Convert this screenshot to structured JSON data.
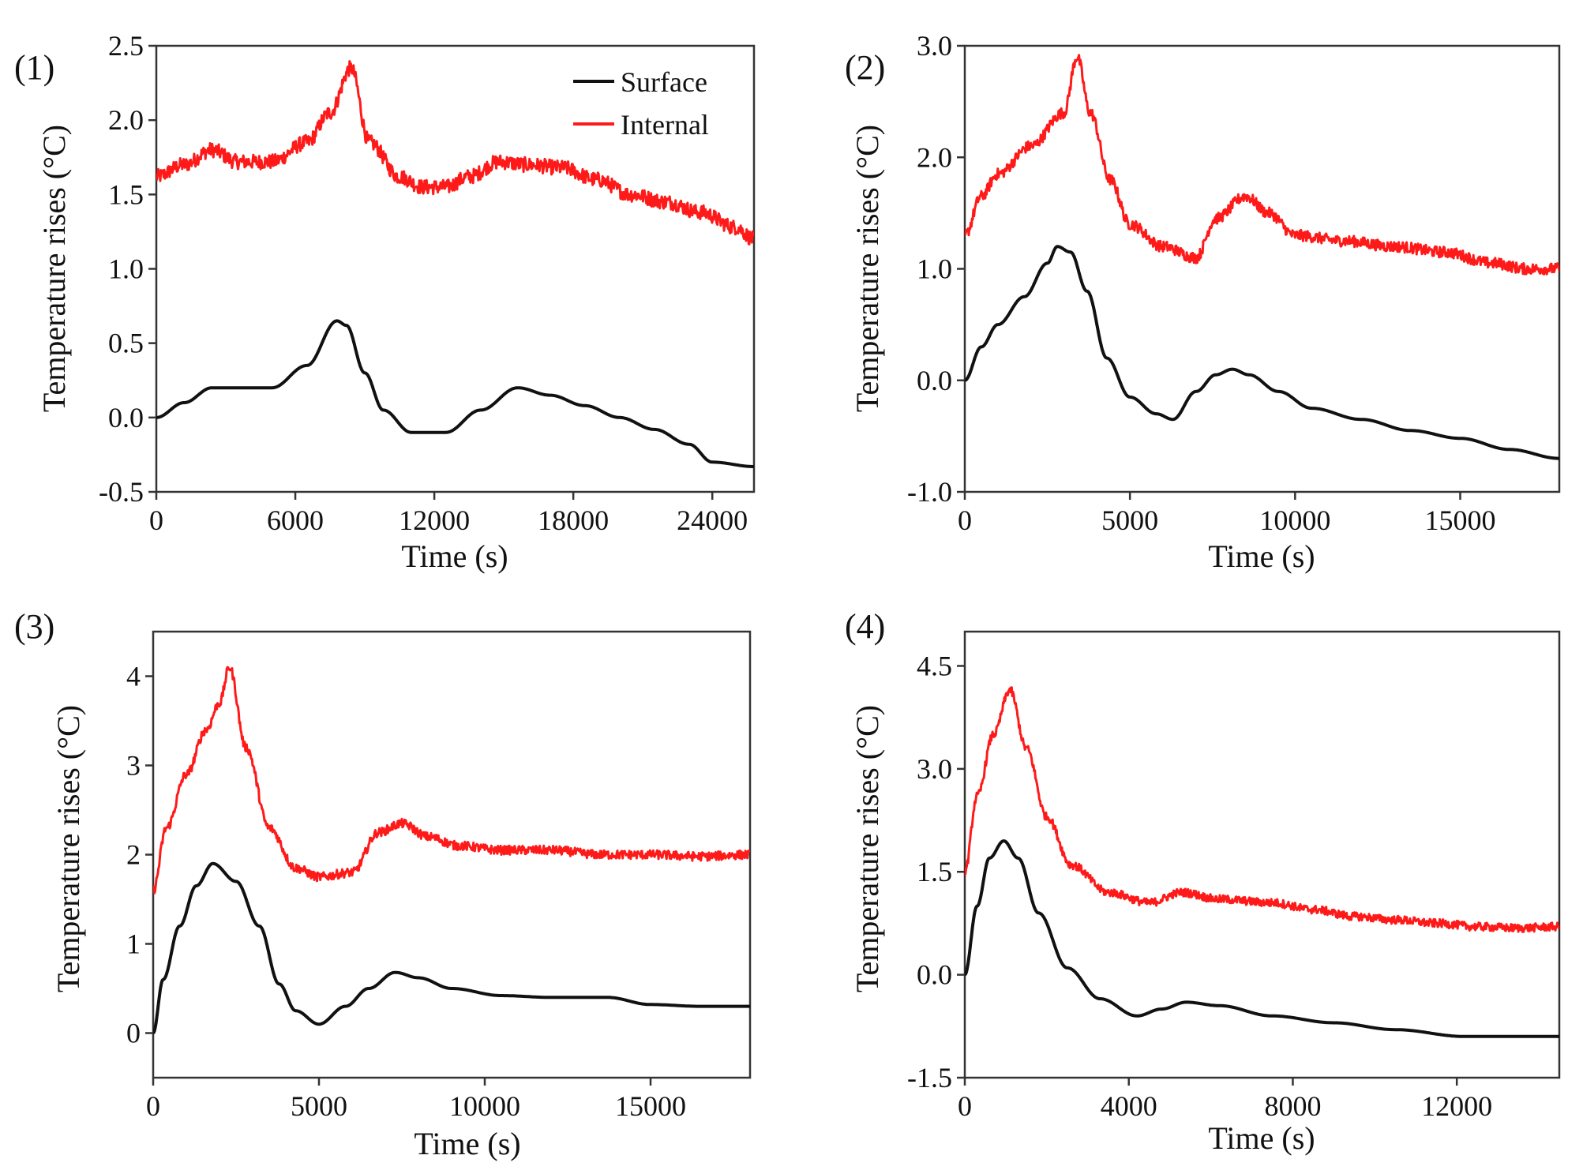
{
  "figure": {
    "colors": {
      "surface": "#111111",
      "internal": "#ff1a1a",
      "axis": "#333333"
    },
    "legend": {
      "surface_label": "Surface",
      "internal_label": "Internal",
      "placement": "top-right of panel (1)"
    }
  },
  "chart_data": [
    {
      "type": "line",
      "panel_label": "(1)",
      "xlabel": "Time (s)",
      "ylabel": "Temperature rises (°C)",
      "xlim": [
        0,
        25800
      ],
      "ylim": [
        -0.5,
        2.5
      ],
      "xticks": [
        0,
        6000,
        12000,
        18000,
        24000
      ],
      "xtick_labels": [
        "0",
        "6000",
        "12000",
        "18000",
        "24000"
      ],
      "yticks": [
        -0.5,
        0.0,
        0.5,
        1.0,
        1.5,
        2.0,
        2.5
      ],
      "ytick_labels": [
        "-0.5",
        "0.0",
        "0.5",
        "1.0",
        "1.5",
        "2.0",
        "2.5"
      ],
      "series": [
        {
          "name": "Surface",
          "noise": 0,
          "x": [
            0,
            1200,
            2400,
            5000,
            6500,
            7800,
            8200,
            9000,
            9800,
            11000,
            12500,
            14000,
            15600,
            17000,
            18500,
            20000,
            21500,
            23000,
            24000,
            25800
          ],
          "y": [
            0.0,
            0.1,
            0.2,
            0.2,
            0.35,
            0.65,
            0.62,
            0.3,
            0.05,
            -0.1,
            -0.1,
            0.05,
            0.2,
            0.15,
            0.08,
            0.0,
            -0.08,
            -0.18,
            -0.3,
            -0.33
          ]
        },
        {
          "name": "Internal",
          "noise": 0.05,
          "x": [
            0,
            1200,
            2400,
            3500,
            5000,
            6500,
            7500,
            8400,
            9200,
            10500,
            11500,
            12500,
            13500,
            14800,
            16000,
            17500,
            19000,
            20500,
            22000,
            23500,
            25000,
            25800
          ],
          "y": [
            1.62,
            1.7,
            1.8,
            1.72,
            1.72,
            1.85,
            2.05,
            2.35,
            1.85,
            1.62,
            1.55,
            1.55,
            1.62,
            1.72,
            1.7,
            1.68,
            1.6,
            1.5,
            1.45,
            1.38,
            1.28,
            1.2
          ]
        }
      ]
    },
    {
      "type": "line",
      "panel_label": "(2)",
      "xlabel": "Time (s)",
      "ylabel": "Temperature rises (°C)",
      "xlim": [
        0,
        18000
      ],
      "ylim": [
        -1.0,
        3.0
      ],
      "xticks": [
        0,
        5000,
        10000,
        15000
      ],
      "xtick_labels": [
        "0",
        "5000",
        "10000",
        "15000"
      ],
      "yticks": [
        -1.0,
        0.0,
        1.0,
        2.0,
        3.0
      ],
      "ytick_labels": [
        "-1.0",
        "0.0",
        "1.0",
        "2.0",
        "3.0"
      ],
      "series": [
        {
          "name": "Surface",
          "noise": 0,
          "x": [
            0,
            500,
            1000,
            1800,
            2500,
            2800,
            3200,
            3700,
            4300,
            5000,
            5800,
            6300,
            7000,
            7600,
            8100,
            8600,
            9500,
            10500,
            12000,
            13500,
            15000,
            16500,
            18000
          ],
          "y": [
            0.0,
            0.3,
            0.5,
            0.75,
            1.05,
            1.2,
            1.15,
            0.8,
            0.2,
            -0.15,
            -0.3,
            -0.35,
            -0.1,
            0.05,
            0.1,
            0.05,
            -0.1,
            -0.25,
            -0.35,
            -0.45,
            -0.52,
            -0.62,
            -0.7
          ]
        },
        {
          "name": "Internal",
          "noise": 0.05,
          "x": [
            0,
            500,
            1000,
            2000,
            3000,
            3400,
            3800,
            4400,
            5000,
            6000,
            7000,
            7600,
            8500,
            9200,
            10000,
            11500,
            13000,
            14500,
            16000,
            17000,
            18000
          ],
          "y": [
            1.3,
            1.65,
            1.85,
            2.1,
            2.4,
            2.9,
            2.4,
            1.8,
            1.4,
            1.2,
            1.1,
            1.45,
            1.65,
            1.5,
            1.3,
            1.25,
            1.2,
            1.15,
            1.05,
            1.0,
            1.0
          ]
        }
      ]
    },
    {
      "type": "line",
      "panel_label": "(3)",
      "xlabel": "Time (s)",
      "ylabel": "Temperature rises (°C)",
      "xlim": [
        0,
        18000
      ],
      "ylim": [
        -0.5,
        4.5
      ],
      "xticks": [
        0,
        5000,
        10000,
        15000
      ],
      "xtick_labels": [
        "0",
        "5000",
        "10000",
        "15000"
      ],
      "yticks": [
        0,
        1,
        2,
        3,
        4
      ],
      "ytick_labels": [
        "0",
        "1",
        "2",
        "3",
        "4"
      ],
      "series": [
        {
          "name": "Surface",
          "noise": 0,
          "x": [
            0,
            300,
            800,
            1300,
            1800,
            2500,
            3200,
            3800,
            4300,
            5000,
            5800,
            6500,
            7300,
            8000,
            9000,
            10500,
            12000,
            13700,
            15000,
            16500,
            18000
          ],
          "y": [
            0.0,
            0.6,
            1.2,
            1.65,
            1.9,
            1.7,
            1.2,
            0.55,
            0.25,
            0.1,
            0.3,
            0.5,
            0.68,
            0.62,
            0.5,
            0.42,
            0.4,
            0.4,
            0.32,
            0.3,
            0.3
          ]
        },
        {
          "name": "Internal",
          "noise": 0.05,
          "x": [
            0,
            400,
            1000,
            1600,
            2000,
            2300,
            2800,
            3500,
            4300,
            5000,
            6000,
            6800,
            7500,
            8300,
            9200,
            10500,
            12000,
            13500,
            15000,
            16500,
            18000
          ],
          "y": [
            1.6,
            2.3,
            2.9,
            3.4,
            3.7,
            4.1,
            3.2,
            2.3,
            1.85,
            1.75,
            1.8,
            2.25,
            2.35,
            2.2,
            2.1,
            2.05,
            2.05,
            2.0,
            2.0,
            1.98,
            2.0
          ]
        }
      ]
    },
    {
      "type": "line",
      "panel_label": "(4)",
      "xlabel": "Time (s)",
      "ylabel": "Temperature rises (°C)",
      "xlim": [
        0,
        14500
      ],
      "ylim": [
        -1.5,
        5.0
      ],
      "xticks": [
        0,
        4000,
        8000,
        12000
      ],
      "xtick_labels": [
        "0",
        "4000",
        "8000",
        "12000"
      ],
      "yticks": [
        -1.5,
        0.0,
        1.5,
        3.0,
        4.5
      ],
      "ytick_labels": [
        "-1.5",
        "0.0",
        "1.5",
        "3.0",
        "4.5"
      ],
      "series": [
        {
          "name": "Surface",
          "noise": 0,
          "x": [
            0,
            300,
            600,
            950,
            1300,
            1800,
            2500,
            3300,
            4200,
            4800,
            5400,
            6200,
            7500,
            9000,
            10500,
            12200,
            13000,
            14500
          ],
          "y": [
            0.0,
            1.0,
            1.7,
            1.95,
            1.7,
            0.9,
            0.1,
            -0.35,
            -0.6,
            -0.5,
            -0.4,
            -0.45,
            -0.6,
            -0.7,
            -0.8,
            -0.9,
            -0.9,
            -0.9
          ]
        },
        {
          "name": "Internal",
          "noise": 0.06,
          "x": [
            0,
            300,
            700,
            1100,
            1500,
            2000,
            2600,
            3500,
            4500,
            5300,
            6200,
            7500,
            8500,
            9500,
            10500,
            11500,
            12500,
            13500,
            14500
          ],
          "y": [
            1.5,
            2.6,
            3.5,
            4.15,
            3.3,
            2.3,
            1.6,
            1.2,
            1.05,
            1.2,
            1.1,
            1.05,
            0.95,
            0.85,
            0.8,
            0.75,
            0.7,
            0.68,
            0.7
          ]
        }
      ]
    }
  ]
}
